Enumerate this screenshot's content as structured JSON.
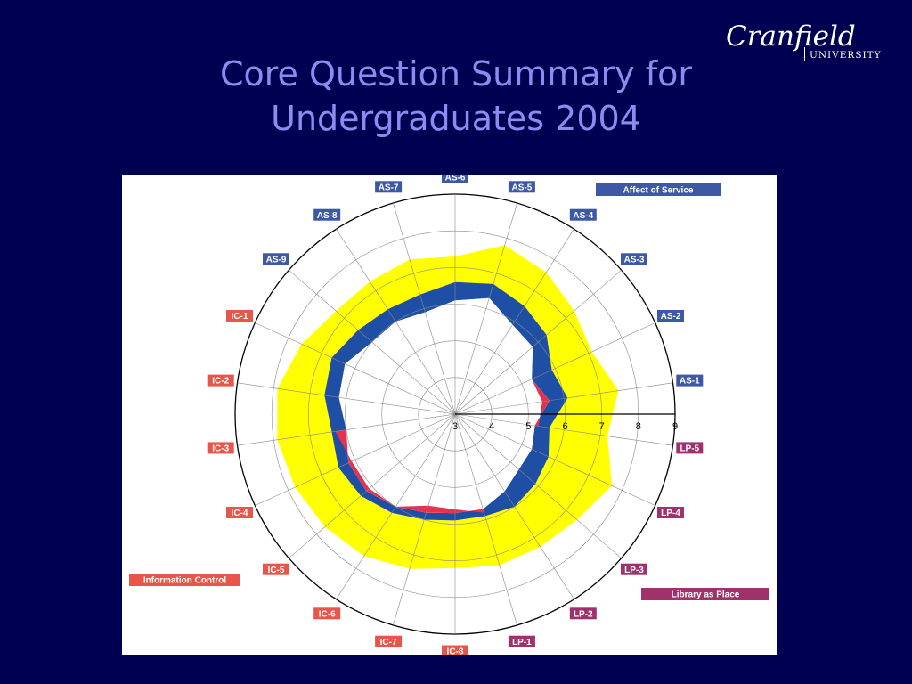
{
  "slide": {
    "title_line1": "Core Question Summary for",
    "title_line2": "Undergraduates 2004"
  },
  "logo": {
    "word": "Cranfield",
    "sub": "UNIVERSITY"
  },
  "colors": {
    "background": "#000052",
    "title": "#8c8cf0",
    "tolerance_zone": "#ffff00",
    "adequacy_gap": "#1e4fa5",
    "shortfall": "#e8314c",
    "affect_of_service": "#3d59a5",
    "information_control": "#e8554a",
    "library_as_place": "#a0326b"
  },
  "chart_data": {
    "type": "radar",
    "scale": {
      "min": 3,
      "max": 9,
      "ticks": [
        3,
        4,
        5,
        6,
        7,
        8,
        9
      ]
    },
    "grid": true,
    "axes": [
      {
        "label": "AS-6",
        "group": "Affect of Service"
      },
      {
        "label": "AS-5",
        "group": "Affect of Service"
      },
      {
        "label": "AS-4",
        "group": "Affect of Service"
      },
      {
        "label": "AS-3",
        "group": "Affect of Service"
      },
      {
        "label": "AS-2",
        "group": "Affect of Service"
      },
      {
        "label": "AS-1",
        "group": "Affect of Service"
      },
      {
        "label": "LP-5",
        "group": "Library as Place"
      },
      {
        "label": "LP-4",
        "group": "Library as Place"
      },
      {
        "label": "LP-3",
        "group": "Library as Place"
      },
      {
        "label": "LP-2",
        "group": "Library as Place"
      },
      {
        "label": "LP-1",
        "group": "Library as Place"
      },
      {
        "label": "IC-8",
        "group": "Information Control"
      },
      {
        "label": "IC-7",
        "group": "Information Control"
      },
      {
        "label": "IC-6",
        "group": "Information Control"
      },
      {
        "label": "IC-5",
        "group": "Information Control"
      },
      {
        "label": "IC-4",
        "group": "Information Control"
      },
      {
        "label": "IC-3",
        "group": "Information Control"
      },
      {
        "label": "IC-2",
        "group": "Information Control"
      },
      {
        "label": "IC-1",
        "group": "Information Control"
      },
      {
        "label": "AS-9",
        "group": "Affect of Service"
      },
      {
        "label": "AS-8",
        "group": "Affect of Service"
      },
      {
        "label": "AS-7",
        "group": "Affect of Service"
      }
    ],
    "series": [
      {
        "values": [
          7.3,
          7.8,
          7.6,
          7.3,
          7.1,
          7.5,
          7.2,
          7.7,
          7.4,
          7.3,
          7.3,
          7.2,
          7.4,
          7.6,
          7.7,
          7.8,
          7.9,
          7.9,
          7.6,
          7.3,
          7.3,
          7.4
        ]
      },
      {
        "values": [
          6.6,
          6.7,
          6.5,
          6.3,
          5.9,
          6.1,
          5.6,
          5.8,
          5.9,
          6.0,
          5.9,
          5.9,
          6.0,
          6.2,
          6.4,
          6.5,
          6.4,
          6.6,
          6.7,
          6.5,
          6.4,
          6.4
        ]
      },
      {
        "values": [
          6.1,
          6.3,
          5.9,
          5.8,
          5.3,
          5.6,
          5.2,
          5.3,
          5.3,
          5.5,
          5.7,
          5.7,
          5.8,
          6.0,
          6.2,
          6.2,
          6.0,
          6.2,
          6.3,
          6.0,
          6.0,
          5.9
        ]
      },
      {
        "values": [
          6.1,
          6.3,
          5.9,
          5.8,
          5.3,
          5.4,
          5.3,
          5.5,
          5.5,
          5.8,
          5.8,
          5.6,
          5.6,
          6.0,
          6.1,
          6.1,
          6.3,
          6.4,
          6.3,
          6.0,
          6.0,
          5.9
        ]
      }
    ],
    "legend": [
      {
        "label": "Affect of Service",
        "position": "top-right"
      },
      {
        "label": "Information Control",
        "position": "bottom-left"
      },
      {
        "label": "Library as Place",
        "position": "bottom-right"
      }
    ]
  }
}
